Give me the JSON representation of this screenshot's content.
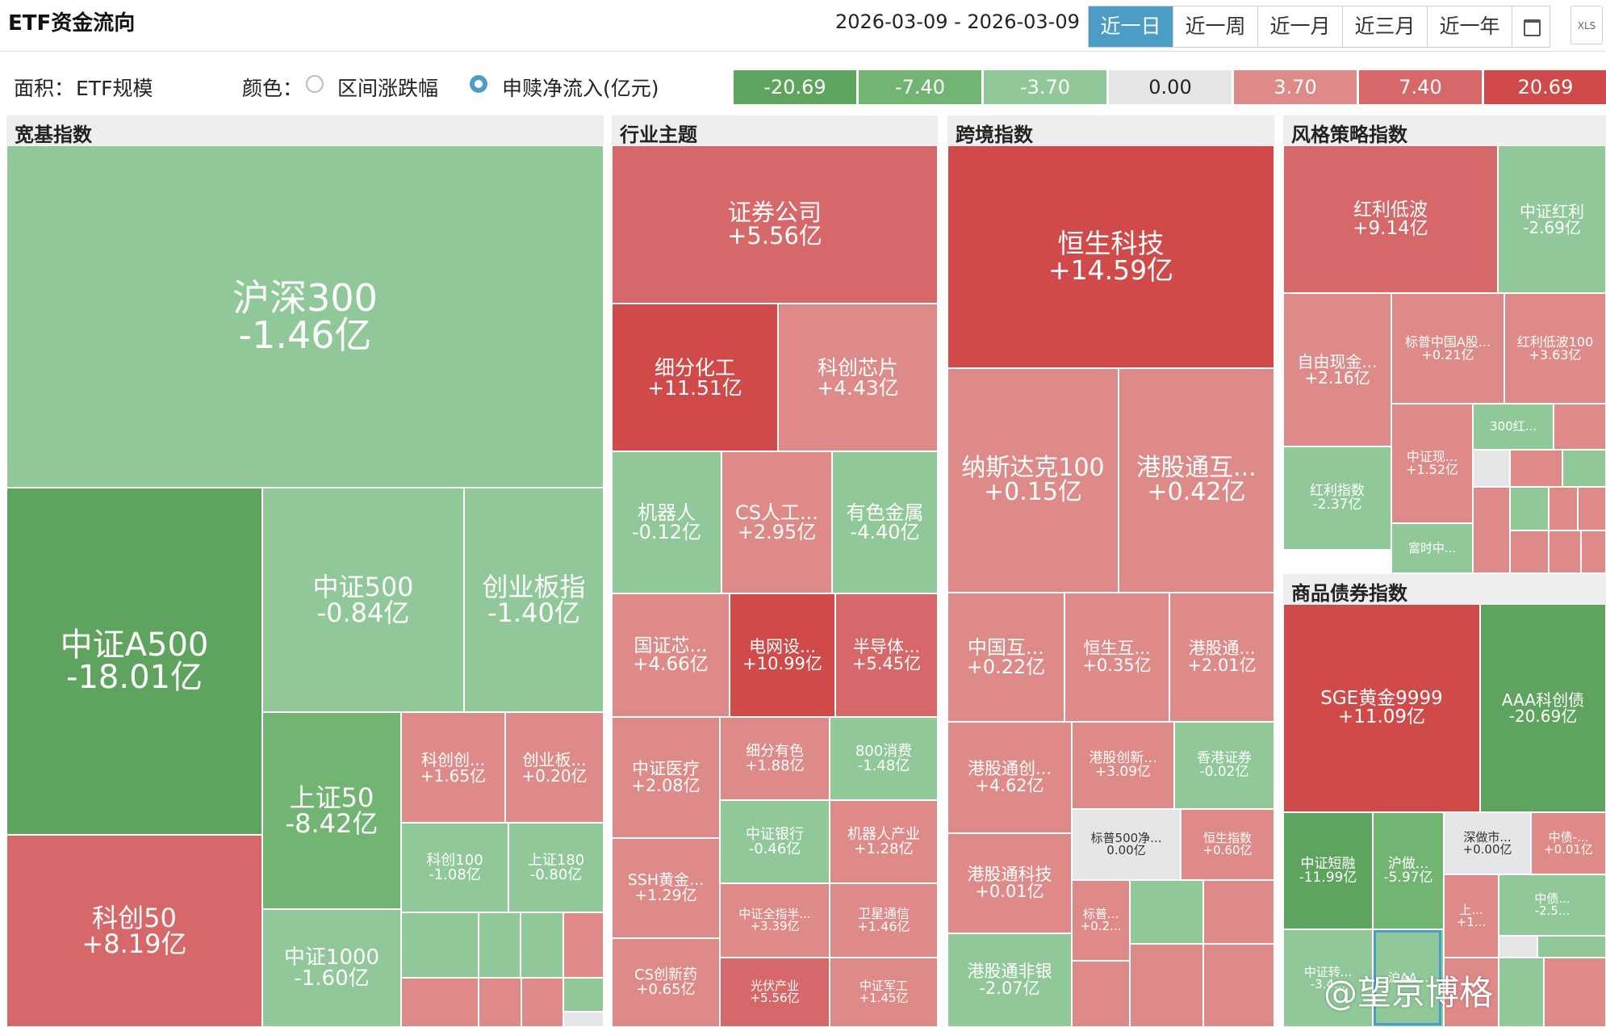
{
  "header": {
    "title": "ETF资金流向",
    "date_range": "2026-03-09 - 2026-03-09",
    "tabs": [
      {
        "label": "近一日",
        "active": true
      },
      {
        "label": "近一周",
        "active": false
      },
      {
        "label": "近一月",
        "active": false
      },
      {
        "label": "近三月",
        "active": false
      },
      {
        "label": "近一年",
        "active": false
      }
    ],
    "calendar_icon": "calendar-icon",
    "export_label": "XLS"
  },
  "options": {
    "area_label": "面积：",
    "area_value": "ETF规模",
    "color_label": "颜色：",
    "color_options": [
      {
        "label": "区间涨跌幅",
        "selected": false
      },
      {
        "label": "申赎净流入(亿元)",
        "selected": true
      }
    ]
  },
  "legend": [
    {
      "label": "-20.69",
      "color": "#5ea45f"
    },
    {
      "label": "-7.40",
      "color": "#72b573"
    },
    {
      "label": "-3.70",
      "color": "#90c89a"
    },
    {
      "label": "0.00",
      "color": "#e5e6e8"
    },
    {
      "label": "3.70",
      "color": "#de8a88"
    },
    {
      "label": "7.40",
      "color": "#d6686a"
    },
    {
      "label": "20.69",
      "color": "#cf4a49"
    }
  ],
  "chart_data": {
    "type": "treemap",
    "size_measure": "ETF规模",
    "color_measure": "申赎净流入(亿元)",
    "color_scale": [
      -20.69,
      -7.4,
      -3.7,
      0.0,
      3.7,
      7.4,
      20.69
    ],
    "groups": [
      {
        "name": "宽基指数",
        "items": [
          {
            "name": "沪深300",
            "value": "-1.46亿",
            "flow": -1.46
          },
          {
            "name": "中证A500",
            "value": "-18.01亿",
            "flow": -18.01
          },
          {
            "name": "中证500",
            "value": "-0.84亿",
            "flow": -0.84
          },
          {
            "name": "创业板指",
            "value": "-1.40亿",
            "flow": -1.4
          },
          {
            "name": "上证50",
            "value": "-8.42亿",
            "flow": -8.42
          },
          {
            "name": "科创创...",
            "value": "+1.65亿",
            "flow": 1.65
          },
          {
            "name": "创业板...",
            "value": "+0.20亿",
            "flow": 0.2
          },
          {
            "name": "科创100",
            "value": "-1.08亿",
            "flow": -1.08
          },
          {
            "name": "上证180",
            "value": "-0.80亿",
            "flow": -0.8
          },
          {
            "name": "科创50",
            "value": "+8.19亿",
            "flow": 8.19
          },
          {
            "name": "中证1000",
            "value": "-1.60亿",
            "flow": -1.6
          }
        ]
      },
      {
        "name": "行业主题",
        "items": [
          {
            "name": "证券公司",
            "value": "+5.56亿",
            "flow": 5.56
          },
          {
            "name": "细分化工",
            "value": "+11.51亿",
            "flow": 11.51
          },
          {
            "name": "科创芯片",
            "value": "+4.43亿",
            "flow": 4.43
          },
          {
            "name": "机器人",
            "value": "-0.12亿",
            "flow": -0.12
          },
          {
            "name": "CS人工...",
            "value": "+2.95亿",
            "flow": 2.95
          },
          {
            "name": "有色金属",
            "value": "-4.40亿",
            "flow": -4.4
          },
          {
            "name": "国证芯...",
            "value": "+4.66亿",
            "flow": 4.66
          },
          {
            "name": "电网设...",
            "value": "+10.99亿",
            "flow": 10.99
          },
          {
            "name": "半导体...",
            "value": "+5.45亿",
            "flow": 5.45
          },
          {
            "name": "中证医疗",
            "value": "+2.08亿",
            "flow": 2.08
          },
          {
            "name": "细分有色",
            "value": "+1.88亿",
            "flow": 1.88
          },
          {
            "name": "800消费",
            "value": "-1.48亿",
            "flow": -1.48
          },
          {
            "name": "中证银行",
            "value": "-0.46亿",
            "flow": -0.46
          },
          {
            "name": "机器人产业",
            "value": "+1.28亿",
            "flow": 1.28
          },
          {
            "name": "SSH黄金...",
            "value": "+1.29亿",
            "flow": 1.29
          },
          {
            "name": "中证全指半...",
            "value": "+3.39亿",
            "flow": 3.39
          },
          {
            "name": "卫星通信",
            "value": "+1.46亿",
            "flow": 1.46
          },
          {
            "name": "CS创新药",
            "value": "+0.65亿",
            "flow": 0.65
          },
          {
            "name": "光伏产业",
            "value": "+5.56亿",
            "flow": 5.56
          },
          {
            "name": "中证军工",
            "value": "+1.45亿",
            "flow": 1.45
          }
        ]
      },
      {
        "name": "跨境指数",
        "items": [
          {
            "name": "恒生科技",
            "value": "+14.59亿",
            "flow": 14.59
          },
          {
            "name": "纳斯达克100",
            "value": "+0.15亿",
            "flow": 0.15
          },
          {
            "name": "港股通互...",
            "value": "+0.42亿",
            "flow": 0.42
          },
          {
            "name": "中国互...",
            "value": "+0.22亿",
            "flow": 0.22
          },
          {
            "name": "恒生互...",
            "value": "+0.35亿",
            "flow": 0.35
          },
          {
            "name": "港股通...",
            "value": "+2.01亿",
            "flow": 2.01
          },
          {
            "name": "港股通创...",
            "value": "+4.62亿",
            "flow": 4.62
          },
          {
            "name": "港股创新...",
            "value": "+3.09亿",
            "flow": 3.09
          },
          {
            "name": "香港证券",
            "value": "-0.02亿",
            "flow": -0.02
          },
          {
            "name": "标普500净...",
            "value": "0.00亿",
            "flow": 0.0
          },
          {
            "name": "恒生指数",
            "value": "+0.60亿",
            "flow": 0.6
          },
          {
            "name": "港股通科技",
            "value": "+0.01亿",
            "flow": 0.01
          },
          {
            "name": "标普...",
            "value": "+0.2...",
            "flow": 0.2
          },
          {
            "name": "港股通非银",
            "value": "-2.07亿",
            "flow": -2.07
          }
        ]
      },
      {
        "name": "风格策略指数",
        "items": [
          {
            "name": "红利低波",
            "value": "+9.14亿",
            "flow": 9.14
          },
          {
            "name": "中证红利",
            "value": "-2.69亿",
            "flow": -2.69
          },
          {
            "name": "自由现金...",
            "value": "+2.16亿",
            "flow": 2.16
          },
          {
            "name": "标普中国A股...",
            "value": "+0.21亿",
            "flow": 0.21
          },
          {
            "name": "红利低波100",
            "value": "+3.63亿",
            "flow": 3.63
          },
          {
            "name": "300红...",
            "value": "",
            "flow": null
          },
          {
            "name": "中证现...",
            "value": "+1.52亿",
            "flow": 1.52
          },
          {
            "name": "红利指数",
            "value": "-2.37亿",
            "flow": -2.37
          },
          {
            "name": "富时中...",
            "value": "",
            "flow": null
          }
        ]
      },
      {
        "name": "商品债券指数",
        "items": [
          {
            "name": "SGE黄金9999",
            "value": "+11.09亿",
            "flow": 11.09
          },
          {
            "name": "AAA科创债",
            "value": "-20.69亿",
            "flow": -20.69
          },
          {
            "name": "中证短融",
            "value": "-11.99亿",
            "flow": -11.99
          },
          {
            "name": "沪做...",
            "value": "-5.97亿",
            "flow": -5.97
          },
          {
            "name": "深做市...",
            "value": "+0.00亿",
            "flow": 0.0
          },
          {
            "name": "中债-...",
            "value": "+0.01亿",
            "flow": 0.01
          },
          {
            "name": "上...",
            "value": "+1...",
            "flow": 1
          },
          {
            "name": "中债...",
            "value": "-2.5...",
            "flow": -2.5
          },
          {
            "name": "中证转...",
            "value": "-3.4...",
            "flow": -3.4
          },
          {
            "name": "沪AA...",
            "value": "",
            "flow": null
          }
        ]
      }
    ]
  },
  "watermark": "@望京博格"
}
